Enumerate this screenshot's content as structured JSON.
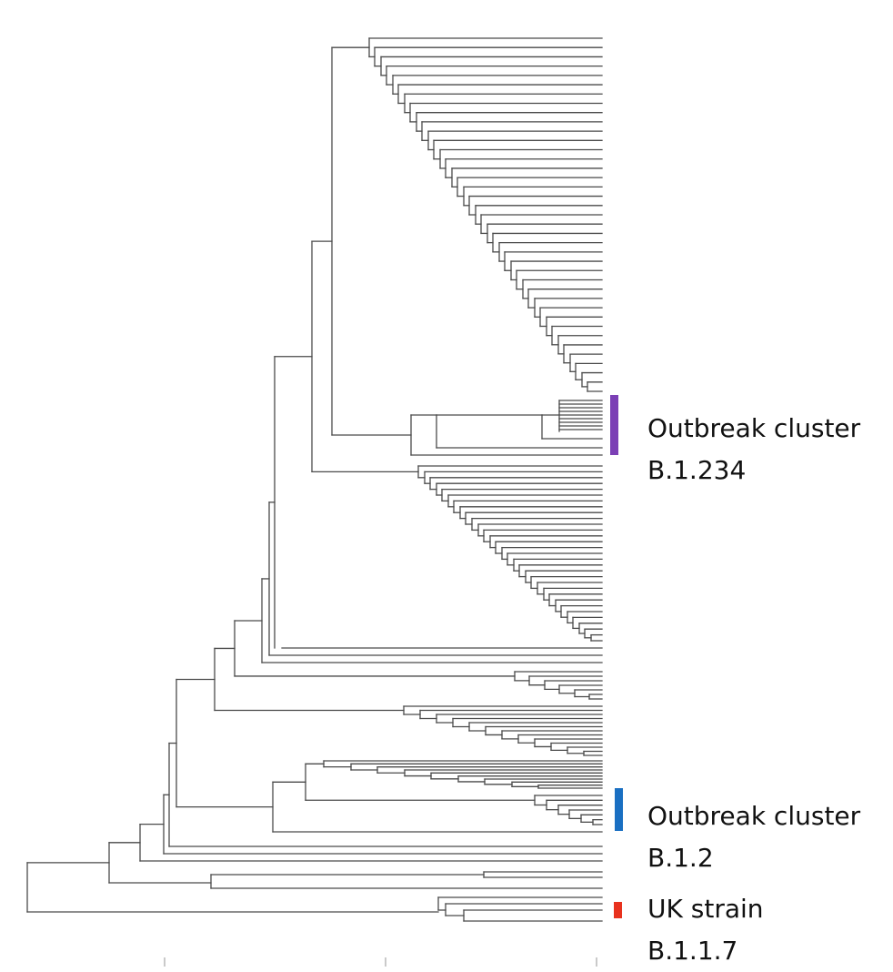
{
  "figure": {
    "clusters": [
      {
        "id": "b1234",
        "name": "Outbreak cluster",
        "lineage": "B.1.234",
        "color": "#7b3fb5"
      },
      {
        "id": "b12",
        "name": "Outbreak cluster",
        "lineage": "B.1.2",
        "color": "#1a6fc2"
      },
      {
        "id": "b117",
        "name": "UK strain",
        "lineage": "B.1.1.7",
        "color": "#e8321e"
      }
    ],
    "branch_color": "#4a4a4a",
    "axis_tick_color": "#b8b8b8"
  }
}
